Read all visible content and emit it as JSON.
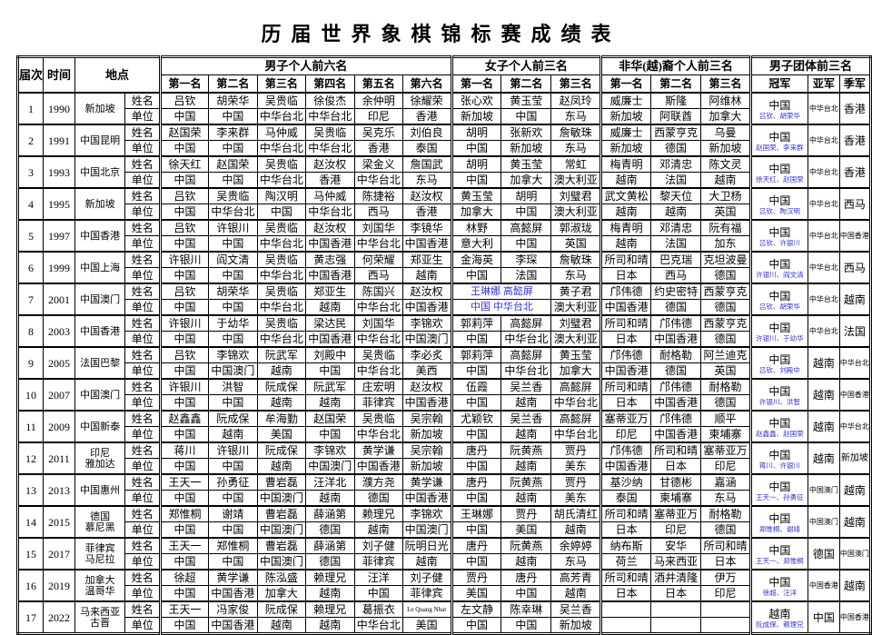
{
  "title": "历届世界象棋锦标赛成绩表",
  "colors": {
    "accent_blue": "#3333cc",
    "text": "#000000",
    "border": "#000000"
  },
  "header": {
    "round": "届次",
    "time": "时间",
    "place": "地点",
    "men_group": "男子个人前六名",
    "men_cols": [
      "第一名",
      "第二名",
      "第三名",
      "第四名",
      "第五名",
      "第六名"
    ],
    "women_group": "女子个人前三名",
    "women_cols": [
      "第一名",
      "第二名",
      "第三名"
    ],
    "nonhua_group": "非华(越)裔个人前三名",
    "nonhua_cols": [
      "第一名",
      "第二名",
      "第三名"
    ],
    "team_group": "男子团体前三名",
    "team_cols": [
      "冠军",
      "亚军",
      "季军"
    ],
    "row_labels": {
      "name": "姓名",
      "unit": "单位"
    }
  },
  "rows": [
    {
      "no": "1",
      "year": "1990",
      "place": "新加坡",
      "men": {
        "names": [
          "吕钦",
          "胡荣华",
          "吴贵临",
          "徐俊杰",
          "余仲明",
          "徐耀荣"
        ],
        "units": [
          "中国",
          "中国",
          "中华台北",
          "中华台北",
          "印尼",
          "香港"
        ]
      },
      "women": {
        "names": [
          "张心欢",
          "黄玉莹",
          "赵凤玲"
        ],
        "units": [
          "新加坡",
          "中国",
          "东马"
        ]
      },
      "nonhua": {
        "names": [
          "威廉士",
          "斯隆",
          "阿维林"
        ],
        "units": [
          "新加坡",
          "阿联酋",
          "加拿大"
        ]
      },
      "team": {
        "champion": "中国",
        "champion_note": "吕钦、胡荣华",
        "second": "中华台北",
        "third": "香港"
      }
    },
    {
      "no": "2",
      "year": "1991",
      "place": "中国昆明",
      "men": {
        "names": [
          "赵国荣",
          "李来群",
          "马仲威",
          "吴贵临",
          "吴克乐",
          "刘伯良"
        ],
        "units": [
          "中国",
          "中国",
          "中华台北",
          "中华台北",
          "香港",
          "泰国"
        ]
      },
      "women": {
        "names": [
          "胡明",
          "张新欢",
          "詹敏珠"
        ],
        "units": [
          "中国",
          "新加坡",
          "东马"
        ]
      },
      "nonhua": {
        "names": [
          "威廉士",
          "西蒙亨克",
          "乌曼"
        ],
        "units": [
          "新加坡",
          "德国",
          "新加坡"
        ]
      },
      "team": {
        "champion": "中国",
        "champion_note": "赵国荣、李来群",
        "second": "中华台北",
        "third": "香港"
      }
    },
    {
      "no": "3",
      "year": "1993",
      "place": "中国北京",
      "men": {
        "names": [
          "徐天红",
          "赵国荣",
          "吴贵临",
          "赵汝权",
          "梁金义",
          "詹国武"
        ],
        "units": [
          "中国",
          "中国",
          "中华台北",
          "香港",
          "中华台北",
          "东马"
        ]
      },
      "women": {
        "names": [
          "胡明",
          "黄玉莹",
          "常虹"
        ],
        "units": [
          "中国",
          "加拿大",
          "澳大利亚"
        ]
      },
      "nonhua": {
        "names": [
          "梅青明",
          "邓清忠",
          "陈文灵"
        ],
        "units": [
          "越南",
          "法国",
          "越南"
        ]
      },
      "team": {
        "champion": "中国",
        "champion_note": "徐天红、赵国荣",
        "second": "中华台北",
        "third": "香港"
      }
    },
    {
      "no": "4",
      "year": "1995",
      "place": "新加坡",
      "men": {
        "names": [
          "吕钦",
          "吴贵临",
          "陶汉明",
          "马仲威",
          "陈捷裕",
          "赵汝权"
        ],
        "units": [
          "中国",
          "中华台北",
          "中国",
          "中华台北",
          "西马",
          "香港"
        ]
      },
      "women": {
        "names": [
          "黄玉莹",
          "胡明",
          "刘璧君"
        ],
        "units": [
          "加拿大",
          "中国",
          "澳大利亚"
        ]
      },
      "nonhua": {
        "names": [
          "武文黄松",
          "黎天位",
          "大卫杨"
        ],
        "units": [
          "越南",
          "越南",
          "英国"
        ]
      },
      "team": {
        "champion": "中国",
        "champion_note": "吕钦、陶汉明",
        "second": "中华台北",
        "third": "西马"
      }
    },
    {
      "no": "5",
      "year": "1997",
      "place": "中国香港",
      "men": {
        "names": [
          "吕钦",
          "许银川",
          "吴贵临",
          "赵汝权",
          "刘国华",
          "李镜华"
        ],
        "units": [
          "中国",
          "中国",
          "中华台北",
          "中国香港",
          "中华台北",
          "中国香港"
        ]
      },
      "women": {
        "names": [
          "林野",
          "高懿屏",
          "郭淑珑"
        ],
        "units": [
          "意大利",
          "中国",
          "英国"
        ]
      },
      "nonhua": {
        "names": [
          "梅青明",
          "邓清忠",
          "阮有福"
        ],
        "units": [
          "越南",
          "法国",
          "加东"
        ]
      },
      "team": {
        "champion": "中国",
        "champion_note": "吕钦、许银川",
        "second": "中华台北",
        "third": "中国香港"
      }
    },
    {
      "no": "6",
      "year": "1999",
      "place": "中国上海",
      "men": {
        "names": [
          "许银川",
          "阎文清",
          "吴贵临",
          "黄志强",
          "何荣耀",
          "郑亚生"
        ],
        "units": [
          "中国",
          "中国",
          "中华台北",
          "中国香港",
          "西马",
          "越南"
        ]
      },
      "women": {
        "names": [
          "金海英",
          "李琛",
          "詹敏珠"
        ],
        "units": [
          "中国",
          "法国",
          "东马"
        ]
      },
      "nonhua": {
        "names": [
          "所司和晴",
          "巴克瑞",
          "克坦波曼"
        ],
        "units": [
          "日本",
          "西马",
          "德国"
        ]
      },
      "team": {
        "champion": "中国",
        "champion_note": "许银川、阎文清",
        "second": "中华台北",
        "third": "西马"
      }
    },
    {
      "no": "7",
      "year": "2001",
      "place": "中国澳门",
      "women_merged": true,
      "men": {
        "names": [
          "吕钦",
          "胡荣华",
          "吴贵临",
          "郑亚生",
          "陈国兴",
          "赵汝权"
        ],
        "units": [
          "中国",
          "中国",
          "中华台北",
          "越南",
          "中华台北",
          "中国香港"
        ]
      },
      "women": {
        "names": [
          "王琳娜 高懿屏",
          "",
          "黄子君"
        ],
        "units": [
          "中国 中华台北",
          "",
          "澳大利亚"
        ]
      },
      "nonhua": {
        "names": [
          "邝伟德",
          "约史密特",
          "西蒙亨克"
        ],
        "units": [
          "中国香港",
          "德国",
          "德国"
        ]
      },
      "team": {
        "champion": "中国",
        "champion_note": "吕钦、胡荣华",
        "second": "中华台北",
        "third": "越南"
      }
    },
    {
      "no": "8",
      "year": "2003",
      "place": "中国香港",
      "men": {
        "names": [
          "许银川",
          "于幼华",
          "吴贵临",
          "梁达民",
          "刘国华",
          "李锦欢"
        ],
        "units": [
          "中国",
          "中国",
          "中华台北",
          "中国香港",
          "中华台北",
          "中国澳门"
        ]
      },
      "women": {
        "names": [
          "郭莉萍",
          "高懿屏",
          "刘璧君"
        ],
        "units": [
          "中国",
          "中华台北",
          "澳大利亚"
        ]
      },
      "nonhua": {
        "names": [
          "所司和晴",
          "邝伟德",
          "西蒙亨克"
        ],
        "units": [
          "日本",
          "中国香港",
          "德国"
        ]
      },
      "team": {
        "champion": "中国",
        "champion_note": "许银川、于幼华",
        "second": "中华台北",
        "third": "法国"
      }
    },
    {
      "no": "9",
      "year": "2005",
      "place": "法国巴黎",
      "men": {
        "names": [
          "吕钦",
          "李锦欢",
          "阮武军",
          "刘殿中",
          "吴贵临",
          "李必炙"
        ],
        "units": [
          "中国",
          "中国澳门",
          "越南",
          "中国",
          "中华台北",
          "美西"
        ]
      },
      "women": {
        "names": [
          "郭莉萍",
          "高懿屏",
          "黄玉莹"
        ],
        "units": [
          "中国",
          "中华台北",
          "加拿大"
        ]
      },
      "nonhua": {
        "names": [
          "邝伟德",
          "耐格勒",
          "阿兰迪克"
        ],
        "units": [
          "中国香港",
          "德国",
          "英国"
        ]
      },
      "team": {
        "champion": "中国",
        "champion_note": "吕钦、刘殿中",
        "second": "越南",
        "third": "中华台北"
      }
    },
    {
      "no": "10",
      "year": "2007",
      "place": "中国澳门",
      "men": {
        "names": [
          "许银川",
          "洪智",
          "阮成保",
          "阮武军",
          "庄宏明",
          "赵汝权"
        ],
        "units": [
          "中国",
          "中国",
          "越南",
          "越南",
          "菲律宾",
          "中国香港"
        ]
      },
      "women": {
        "names": [
          "伍霞",
          "吴兰香",
          "高懿屏"
        ],
        "units": [
          "中国",
          "越南",
          "中华台北"
        ]
      },
      "nonhua": {
        "names": [
          "所司和晴",
          "邝伟德",
          "耐格勒"
        ],
        "units": [
          "日本",
          "中国香港",
          "德国"
        ]
      },
      "team": {
        "champion": "中国",
        "champion_note": "许银川、洪智",
        "second": "越南",
        "third": "中国香港"
      }
    },
    {
      "no": "11",
      "year": "2009",
      "place": "中国新泰",
      "men": {
        "names": [
          "赵鑫鑫",
          "阮成保",
          "牟海勤",
          "赵国荣",
          "吴贵临",
          "吴宗翰"
        ],
        "units": [
          "中国",
          "越南",
          "美国",
          "中国",
          "中华台北",
          "新加坡"
        ]
      },
      "women": {
        "names": [
          "尤颖钦",
          "吴兰香",
          "高懿屏"
        ],
        "units": [
          "中国",
          "越南",
          "中华台北"
        ]
      },
      "nonhua": {
        "names": [
          "塞蒂亚万",
          "邝伟德",
          "顺平"
        ],
        "units": [
          "印尼",
          "中国香港",
          "柬埔寨"
        ]
      },
      "team": {
        "champion": "中国",
        "champion_note": "赵鑫鑫、赵国荣",
        "second": "越南",
        "third": "中华台北"
      }
    },
    {
      "no": "12",
      "year": "2011",
      "place": "印尼\n雅加达",
      "men": {
        "names": [
          "蒋川",
          "许银川",
          "阮成保",
          "李锦欢",
          "黄学谦",
          "吴宗翰"
        ],
        "units": [
          "中国",
          "中国",
          "越南",
          "中国澳门",
          "中国香港",
          "新加坡"
        ]
      },
      "women": {
        "names": [
          "唐丹",
          "阮黄燕",
          "贾丹"
        ],
        "units": [
          "中国",
          "越南",
          "美东"
        ]
      },
      "nonhua": {
        "names": [
          "邝伟德",
          "所司和晴",
          "塞蒂亚万"
        ],
        "units": [
          "中国香港",
          "日本",
          "印尼"
        ]
      },
      "team": {
        "champion": "中国",
        "champion_note": "蒋川、许银川",
        "second": "越南",
        "third": "新加坡"
      }
    },
    {
      "no": "13",
      "year": "2013",
      "place": "中国惠州",
      "men": {
        "names": [
          "王天一",
          "孙勇征",
          "曹岩磊",
          "汪洋北",
          "濮方尧",
          "黄学谦"
        ],
        "units": [
          "中国",
          "中国",
          "中国澳门",
          "越南",
          "德国",
          "中国香港"
        ]
      },
      "women": {
        "names": [
          "唐丹",
          "阮黄燕",
          "贾丹"
        ],
        "units": [
          "中国",
          "越南",
          "美东"
        ]
      },
      "nonhua": {
        "names": [
          "基沙纳",
          "甘德彬",
          "嘉涵"
        ],
        "units": [
          "泰国",
          "柬埔寨",
          "东马"
        ]
      },
      "team": {
        "champion": "中国",
        "champion_note": "王天一、孙勇征",
        "second": "中国澳门",
        "third": "越南"
      }
    },
    {
      "no": "14",
      "year": "2015",
      "place": "德国\n慕尼黑",
      "men": {
        "names": [
          "郑惟桐",
          "谢靖",
          "曹岩磊",
          "薛涵第",
          "赖理兄",
          "李锦欢"
        ],
        "units": [
          "中国",
          "中国",
          "中国澳门",
          "德国",
          "越南",
          "中国澳门"
        ]
      },
      "women": {
        "names": [
          "王琳娜",
          "贾丹",
          "胡氏清红"
        ],
        "units": [
          "中国",
          "美国",
          "越南"
        ]
      },
      "nonhua": {
        "names": [
          "所司和晴",
          "塞蒂亚万",
          "耐格勒"
        ],
        "units": [
          "日本",
          "印尼",
          "德国"
        ]
      },
      "team": {
        "champion": "中国",
        "champion_note": "郑惟桐、谢靖",
        "second": "中国澳门",
        "third": "越南"
      }
    },
    {
      "no": "15",
      "year": "2017",
      "place": "菲律宾\n马尼拉",
      "men": {
        "names": [
          "王天一",
          "郑惟桐",
          "曹岩磊",
          "薛涵第",
          "刘子健",
          "阮明日光"
        ],
        "units": [
          "中国",
          "中国",
          "中国澳门",
          "德国",
          "菲律宾",
          "越南"
        ]
      },
      "women": {
        "names": [
          "唐丹",
          "阮黄燕",
          "余婷婷"
        ],
        "units": [
          "中国",
          "越南",
          "东马"
        ]
      },
      "nonhua": {
        "names": [
          "纳布斯",
          "安华",
          "所司和晴"
        ],
        "units": [
          "荷兰",
          "马来西亚",
          "日本"
        ]
      },
      "team": {
        "champion": "中国",
        "champion_note": "王天一、郑惟桐",
        "second": "德国",
        "third": "中国澳门"
      }
    },
    {
      "no": "16",
      "year": "2019",
      "place": "加拿大\n温哥华",
      "men": {
        "names": [
          "徐超",
          "黄学谦",
          "陈泓盛",
          "赖理兄",
          "汪洋",
          "刘子健"
        ],
        "units": [
          "中国",
          "中国香港",
          "加拿大",
          "越南",
          "中国",
          "菲律宾"
        ]
      },
      "women": {
        "names": [
          "贾丹",
          "唐丹",
          "高芳青"
        ],
        "units": [
          "美国",
          "中国",
          "越南"
        ]
      },
      "nonhua": {
        "names": [
          "所司和晴",
          "酒井清隆",
          "伊万"
        ],
        "units": [
          "日本",
          "日本",
          "印尼"
        ]
      },
      "team": {
        "champion": "中国",
        "champion_note": "徐超、汪洋",
        "second": "中国香港",
        "third": "越南"
      }
    },
    {
      "no": "17",
      "year": "2022",
      "place": "马来西亚\n古晋",
      "men": {
        "names": [
          "王天一",
          "冯家俊",
          "阮成保",
          "赖理兄",
          "葛振衣",
          "Le Quang Nhat"
        ],
        "units": [
          "中国",
          "中国香港",
          "越南",
          "越南",
          "中华台北",
          "美国"
        ]
      },
      "women": {
        "names": [
          "左文静",
          "陈幸琳",
          "吴兰香"
        ],
        "units": [
          "中国",
          "中国",
          "新加坡"
        ]
      },
      "nonhua": {
        "names": [
          "",
          "",
          ""
        ],
        "units": [
          "",
          "",
          ""
        ]
      },
      "team": {
        "champion": "越南",
        "champion_note": "阮成保、赖理兄",
        "second": "中国",
        "third": "中国香港"
      }
    }
  ]
}
